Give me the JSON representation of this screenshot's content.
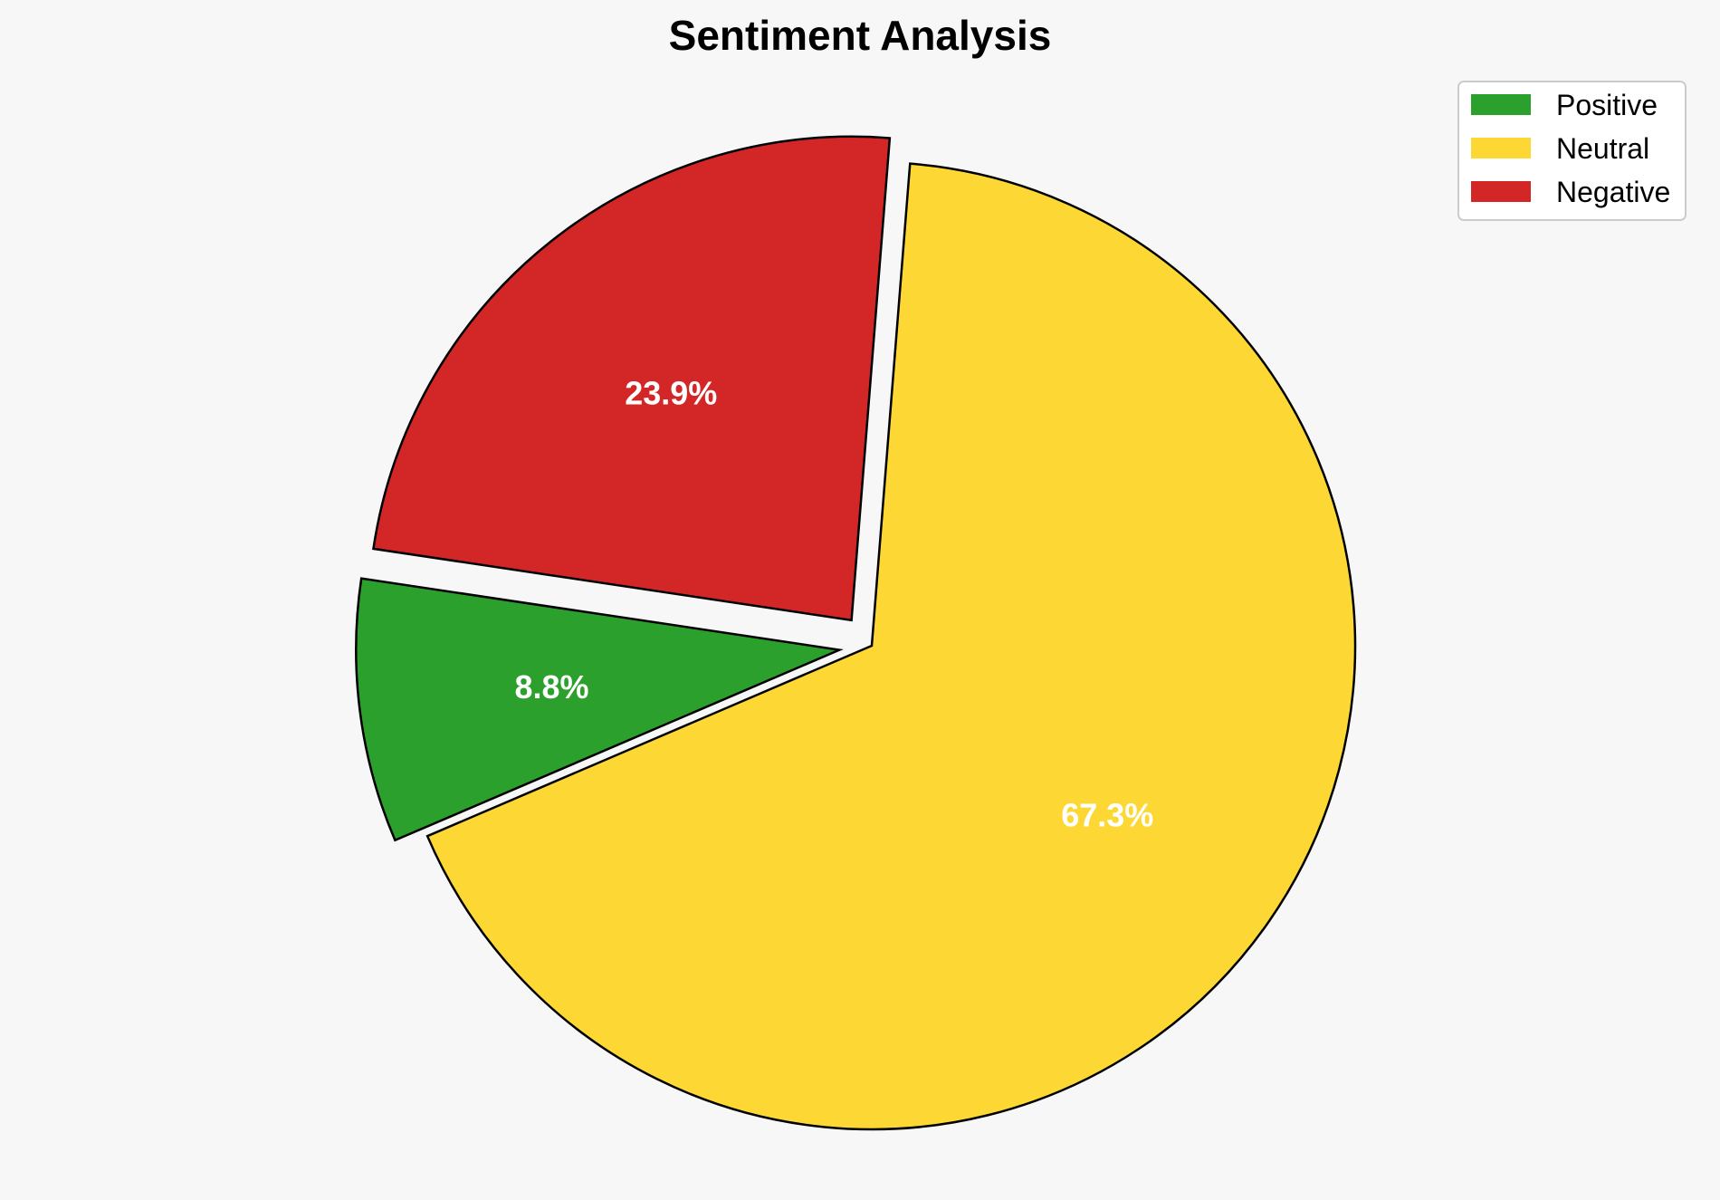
{
  "chart_data": {
    "type": "pie",
    "title": "Sentiment Analysis",
    "slices": [
      {
        "label": "Positive",
        "value": 8.8,
        "display": "8.8%",
        "color": "#2ca02c",
        "exploded": true
      },
      {
        "label": "Neutral",
        "value": 67.3,
        "display": "67.3%",
        "color": "#fdd835",
        "exploded": false
      },
      {
        "label": "Negative",
        "value": 23.9,
        "display": "23.9%",
        "color": "#d32727",
        "exploded": true
      }
    ],
    "legend": {
      "placement": "top-right",
      "entries": [
        "Positive",
        "Neutral",
        "Negative"
      ]
    },
    "background": "#f7f7f7",
    "edge_color": "#000000"
  }
}
